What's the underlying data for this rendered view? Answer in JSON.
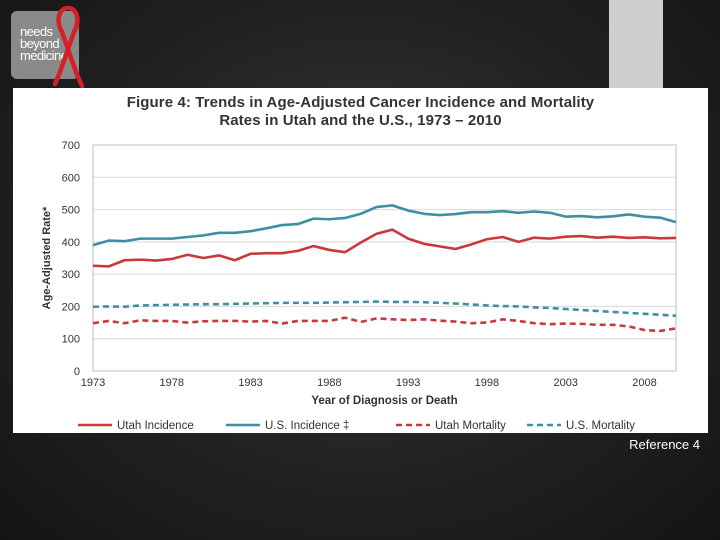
{
  "logo": {
    "lines": [
      "needs",
      "beyond",
      "medicine"
    ]
  },
  "figure": {
    "title_line1": "Figure 4: Trends in Age-Adjusted Cancer Incidence and Mortality",
    "title_line2": "Rates in Utah and the U.S., 1973 – 2010"
  },
  "reference": "Reference 4",
  "chart_data": {
    "type": "line",
    "title": "Figure 4: Trends in Age-Adjusted Cancer Incidence and Mortality Rates in Utah and the U.S., 1973 – 2010",
    "xlabel": "Year of Diagnosis or Death",
    "ylabel": "Age-Adjusted Rate*",
    "xlim": [
      1973,
      2010
    ],
    "ylim": [
      0,
      700
    ],
    "xticks": [
      1973,
      1978,
      1983,
      1988,
      1993,
      1998,
      2003,
      2008
    ],
    "yticks": [
      0,
      100,
      200,
      300,
      400,
      500,
      600,
      700
    ],
    "grid": true,
    "legend": "bottom",
    "x": [
      1973,
      1974,
      1975,
      1976,
      1977,
      1978,
      1979,
      1980,
      1981,
      1982,
      1983,
      1984,
      1985,
      1986,
      1987,
      1988,
      1989,
      1990,
      1991,
      1992,
      1993,
      1994,
      1995,
      1996,
      1997,
      1998,
      1999,
      2000,
      2001,
      2002,
      2003,
      2004,
      2005,
      2006,
      2007,
      2008,
      2009,
      2010
    ],
    "series": [
      {
        "name": "Utah Incidence",
        "color": "#c8393c",
        "style": "solid",
        "values": [
          326,
          324,
          343,
          345,
          342,
          347,
          360,
          350,
          358,
          343,
          363,
          365,
          365,
          372,
          387,
          375,
          368,
          398,
          425,
          438,
          410,
          394,
          386,
          378,
          392,
          408,
          415,
          400,
          413,
          410,
          416,
          418,
          413,
          416,
          412,
          414,
          411,
          412
        ]
      },
      {
        "name": "U.S. Incidence ‡",
        "color": "#3f8fa3",
        "style": "solid",
        "values": [
          390,
          404,
          402,
          410,
          410,
          410,
          415,
          420,
          428,
          428,
          433,
          442,
          452,
          455,
          472,
          470,
          474,
          487,
          508,
          513,
          497,
          487,
          483,
          486,
          492,
          492,
          495,
          490,
          494,
          490,
          478,
          480,
          476,
          479,
          485,
          478,
          475,
          461
        ]
      },
      {
        "name": "Utah Mortality",
        "color": "#c8393c",
        "style": "dashed",
        "values": [
          148,
          155,
          148,
          157,
          155,
          155,
          150,
          154,
          155,
          155,
          153,
          155,
          147,
          155,
          155,
          155,
          165,
          152,
          163,
          160,
          158,
          160,
          156,
          153,
          148,
          150,
          160,
          155,
          148,
          145,
          147,
          146,
          143,
          143,
          138,
          127,
          124,
          132
        ]
      },
      {
        "name": "U.S. Mortality",
        "color": "#3f8fa3",
        "style": "dashed",
        "values": [
          199,
          200,
          199,
          203,
          204,
          205,
          206,
          207,
          207,
          208,
          209,
          210,
          211,
          211,
          211,
          212,
          213,
          214,
          215,
          214,
          214,
          213,
          211,
          209,
          206,
          203,
          201,
          200,
          197,
          195,
          192,
          189,
          186,
          183,
          180,
          177,
          174,
          171
        ]
      }
    ]
  }
}
